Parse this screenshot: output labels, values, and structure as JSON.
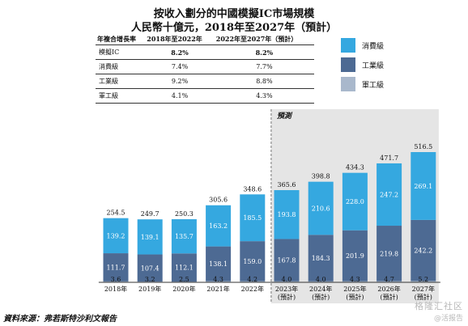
{
  "colors": {
    "consumer": "#35a8e0",
    "industrial": "#4d6a93",
    "military": "#a9b8cc",
    "forecast_shade": "#dcdcdc"
  },
  "chart_data": {
    "type": "bar",
    "stacked": true,
    "title": "按收入劃分的中國模擬IC市場規模",
    "subtitle": "人民幣十億元，2018年至2027年（預計）",
    "categories": [
      "2018年",
      "2019年",
      "2020年",
      "2021年",
      "2022年",
      "2023年\n(預計)",
      "2024年\n(預計)",
      "2025年\n(預計)",
      "2026年\n(預計)",
      "2027年\n(預計)"
    ],
    "series": [
      {
        "name": "軍工級",
        "values": [
          3.6,
          3.2,
          2.5,
          4.3,
          4.2,
          4.0,
          4.0,
          4.3,
          4.7,
          5.2
        ]
      },
      {
        "name": "工業級",
        "values": [
          111.7,
          107.4,
          112.1,
          138.1,
          159.0,
          167.8,
          184.3,
          201.9,
          219.8,
          242.2
        ]
      },
      {
        "name": "消費級",
        "values": [
          139.2,
          139.1,
          135.7,
          163.2,
          185.5,
          193.8,
          210.6,
          228.0,
          247.2,
          269.1
        ]
      }
    ],
    "totals": [
      254.5,
      249.7,
      250.3,
      305.6,
      348.6,
      365.6,
      398.8,
      434.3,
      471.7,
      516.5
    ],
    "forecast_label": "預測",
    "forecast_start_index": 5,
    "ylim": [
      0,
      600
    ],
    "grid": false
  },
  "cagr_table": {
    "headers": [
      "年複合增長率",
      "2018年至2022年",
      "2022年至2027年（預計）"
    ],
    "rows": [
      {
        "label": "模擬IC",
        "v1": "8.2%",
        "v2": "8.2%"
      },
      {
        "label": "消費級",
        "v1": "7.4%",
        "v2": "7.7%"
      },
      {
        "label": "工業級",
        "v1": "9.2%",
        "v2": "8.8%"
      },
      {
        "label": "軍工級",
        "v1": "4.1%",
        "v2": "4.3%"
      }
    ]
  },
  "legend": {
    "consumer": "消費級",
    "industrial": "工業級",
    "military": "軍工級"
  },
  "source": "資料來源：弗若斯特沙利文報告",
  "watermark": "格隆汇社区",
  "watermark2": "@活报告"
}
